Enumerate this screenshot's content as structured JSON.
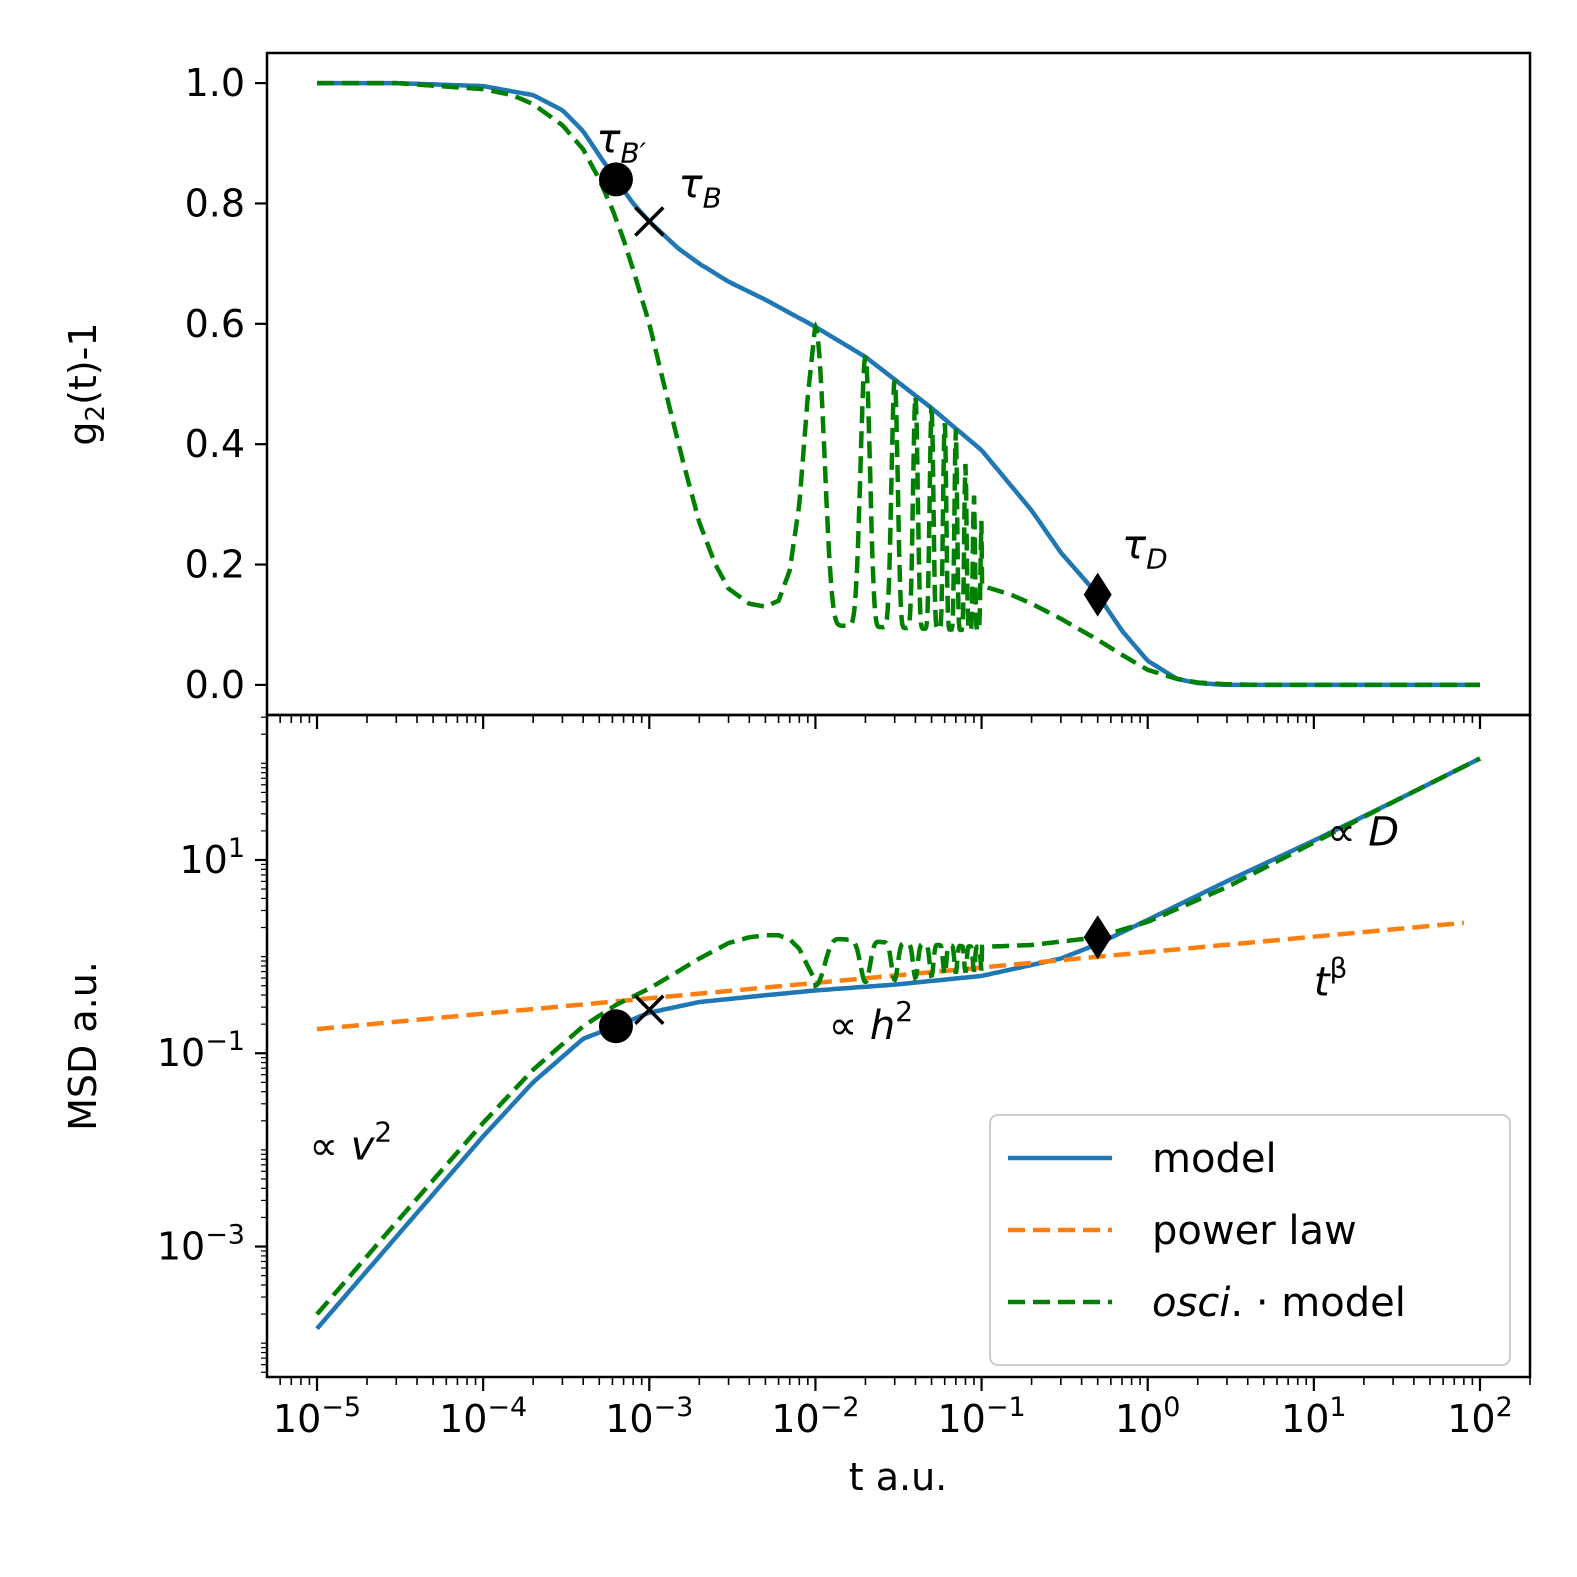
{
  "chart_data": [
    {
      "type": "line",
      "panel": "top",
      "ylabel": "g",
      "ylabel_sub": "2",
      "ylabel_rest": "(t)-1",
      "xscale": "log",
      "xlim": [
        5e-06,
        200
      ],
      "ylim": [
        -0.05,
        1.05
      ],
      "y_ticks": [
        0.0,
        0.2,
        0.4,
        0.6,
        0.8,
        1.0
      ],
      "y_tick_labels": [
        "0.0",
        "0.2",
        "0.4",
        "0.6",
        "0.8",
        "1.0"
      ],
      "series": [
        {
          "name": "model",
          "color": "#1f77b4",
          "style": "solid",
          "x": [
            1e-05,
            3e-05,
            0.0001,
            0.0002,
            0.0003,
            0.0004,
            0.0005,
            0.00063,
            0.0008,
            0.001,
            0.0015,
            0.002,
            0.003,
            0.005,
            0.01,
            0.02,
            0.05,
            0.1,
            0.2,
            0.3,
            0.5,
            0.7,
            1.0,
            1.5,
            2.0,
            3.0,
            5.0,
            10,
            100
          ],
          "y": [
            1.0,
            1.0,
            0.995,
            0.98,
            0.955,
            0.92,
            0.88,
            0.84,
            0.8,
            0.77,
            0.725,
            0.7,
            0.67,
            0.64,
            0.595,
            0.545,
            0.46,
            0.39,
            0.29,
            0.22,
            0.15,
            0.09,
            0.04,
            0.01,
            0.003,
            0.0,
            0.0,
            0.0,
            0.0
          ]
        },
        {
          "name": "osci. · model",
          "color": "#008000",
          "style": "dashed",
          "x": [
            1e-05,
            3e-05,
            0.0001,
            0.00015,
            0.0002,
            0.0003,
            0.0004,
            0.0005,
            0.0006,
            0.0007,
            0.0008,
            0.001,
            0.0013,
            0.0016,
            0.002,
            0.0025,
            0.003,
            0.004,
            0.005,
            0.006,
            0.007,
            0.008,
            0.009,
            0.01,
            0.1,
            0.15,
            0.2,
            0.3,
            0.5,
            0.7,
            1.0,
            1.5,
            2.0,
            3.0,
            5.0,
            10,
            100
          ],
          "y": [
            1.0,
            1.0,
            0.99,
            0.98,
            0.965,
            0.93,
            0.89,
            0.84,
            0.79,
            0.74,
            0.69,
            0.6,
            0.47,
            0.37,
            0.27,
            0.2,
            0.16,
            0.135,
            0.13,
            0.14,
            0.19,
            0.3,
            0.48,
            0.6,
            0.165,
            0.15,
            0.135,
            0.11,
            0.075,
            0.05,
            0.025,
            0.01,
            0.004,
            0.001,
            0.0,
            0.0,
            0.0
          ],
          "oscillation": {
            "start": 0.01,
            "end": 0.1,
            "upper_envelope": "model",
            "lower_values": [
              0.1,
              0.09
            ]
          }
        }
      ],
      "markers": [
        {
          "name": "tau-B-prime",
          "shape": "circle",
          "x": 0.00063,
          "y": 0.84
        },
        {
          "name": "tau-B",
          "shape": "x",
          "x": 0.001,
          "y": 0.77
        },
        {
          "name": "tau-D",
          "shape": "diamond",
          "x": 0.5,
          "y": 0.15
        }
      ],
      "annotations": [
        {
          "name": "tau-B-prime-label",
          "text": "τ",
          "sub": "B′",
          "x": 0.00048,
          "y": 0.885
        },
        {
          "name": "tau-B-label",
          "text": "τ",
          "sub": "B",
          "x": 0.0015,
          "y": 0.81
        },
        {
          "name": "tau-D-label",
          "text": "τ",
          "sub": "D",
          "x": 0.7,
          "y": 0.21
        }
      ]
    },
    {
      "type": "line",
      "panel": "bottom",
      "title": "",
      "xlabel": "t a.u.",
      "ylabel": "MSD a.u.",
      "xscale": "log",
      "yscale": "log",
      "xlim": [
        5e-06,
        200
      ],
      "ylim_log10": [
        -4.35,
        2.5
      ],
      "y_ticks_log10": [
        -3,
        -1,
        1
      ],
      "y_tick_base": "10",
      "y_tick_exponents": [
        "−3",
        "−1",
        "1"
      ],
      "x_ticks_log10": [
        -5,
        -4,
        -3,
        -2,
        -1,
        0,
        1,
        2
      ],
      "x_tick_base": "10",
      "x_tick_exponents": [
        "−5",
        "−4",
        "−3",
        "−2",
        "−1",
        "0",
        "1",
        "2"
      ],
      "series": [
        {
          "name": "model",
          "color": "#1f77b4",
          "style": "solid",
          "x": [
            1e-05,
            3e-05,
            0.0001,
            0.0002,
            0.0004,
            0.00063,
            0.001,
            0.002,
            0.005,
            0.01,
            0.03,
            0.1,
            0.3,
            0.5,
            1,
            3,
            10,
            30,
            100
          ],
          "log10_y": [
            -3.85,
            -2.9,
            -1.86,
            -1.3,
            -0.85,
            -0.72,
            -0.58,
            -0.47,
            -0.4,
            -0.35,
            -0.29,
            -0.2,
            -0.02,
            0.13,
            0.38,
            0.78,
            1.2,
            1.6,
            2.05
          ]
        },
        {
          "name": "power law",
          "color": "#ff7f0e",
          "style": "dashed",
          "x": [
            1e-05,
            80
          ],
          "log10_y": [
            -0.75,
            0.35
          ]
        },
        {
          "name": "osci. · model",
          "color": "#008000",
          "style": "dashed",
          "x": [
            1e-05,
            3e-05,
            0.0001,
            0.0002,
            0.0004,
            0.00063,
            0.001,
            0.0015,
            0.002,
            0.003,
            0.004,
            0.005,
            0.006,
            0.007,
            0.008,
            0.009,
            0.01,
            0.1,
            0.2,
            0.5,
            1,
            3,
            10,
            30,
            100
          ],
          "log10_y": [
            -3.7,
            -2.75,
            -1.72,
            -1.17,
            -0.72,
            -0.5,
            -0.33,
            -0.15,
            -0.02,
            0.14,
            0.2,
            0.22,
            0.22,
            0.18,
            0.08,
            -0.1,
            -0.25,
            0.1,
            0.12,
            0.2,
            0.36,
            0.72,
            1.18,
            1.6,
            2.05
          ],
          "oscillation": {
            "start": 0.01,
            "end": 0.1
          }
        }
      ],
      "markers": [
        {
          "name": "circle",
          "shape": "circle",
          "x": 0.00063,
          "log10_y": -0.72
        },
        {
          "name": "x",
          "shape": "x",
          "x": 0.001,
          "log10_y": -0.55
        },
        {
          "name": "diamond",
          "shape": "diamond",
          "x": 0.5,
          "log10_y": 0.2
        }
      ],
      "annotations": [
        {
          "name": "v-squared-label",
          "prefix": "∝ ",
          "var": "v",
          "sup": "2",
          "x": 9e-06,
          "log10_y": -2.1
        },
        {
          "name": "h-squared-label",
          "prefix": "∝ ",
          "var": "h",
          "sup": "2",
          "x": 0.012,
          "log10_y": -0.85
        },
        {
          "name": "D-label",
          "prefix": "∝ ",
          "var": "D",
          "sup": "",
          "x": 12,
          "log10_y": 1.15
        },
        {
          "name": "t-beta-label",
          "prefix": "",
          "var": "t",
          "sup": "β",
          "x": 10,
          "log10_y": -0.4
        }
      ],
      "legend": {
        "position": "lower-right",
        "entries": [
          {
            "label": "model",
            "italic_part": "",
            "color": "#1f77b4",
            "style": "solid"
          },
          {
            "label": "power law",
            "italic_part": "",
            "color": "#ff7f0e",
            "style": "dashed"
          },
          {
            "label": ". · model",
            "italic_part": "osci",
            "color": "#008000",
            "style": "dashed"
          }
        ]
      }
    }
  ]
}
